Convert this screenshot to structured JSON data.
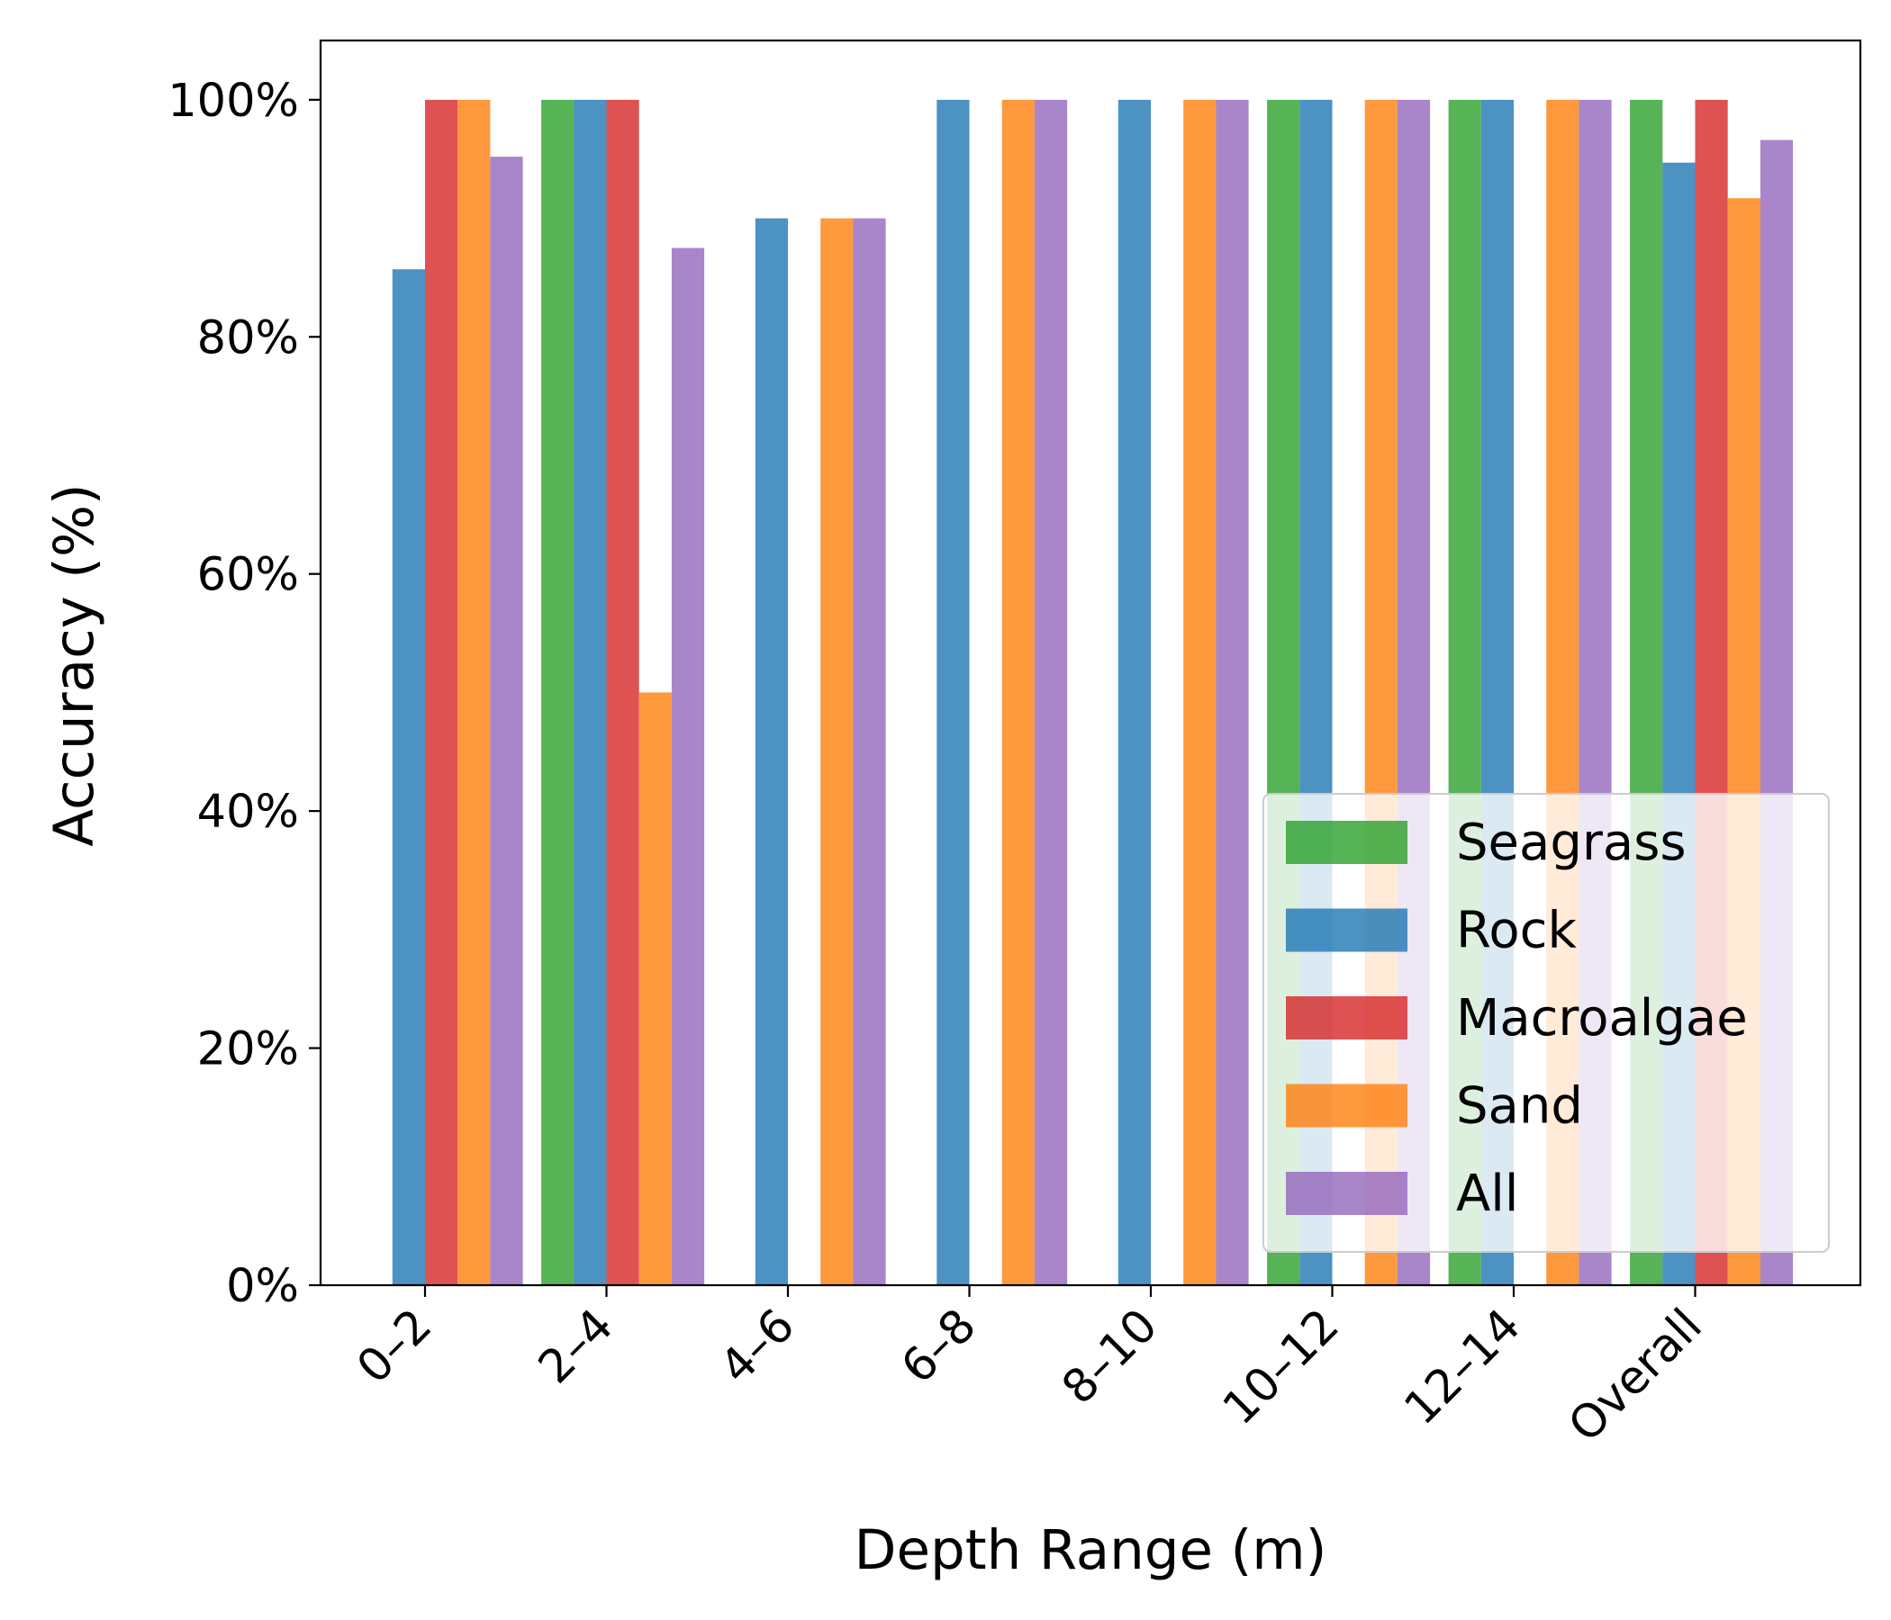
{
  "chart_data": {
    "type": "bar",
    "title": "",
    "xlabel": "Depth Range (m)",
    "ylabel": "Accuracy (%)",
    "ylim": [
      0,
      105
    ],
    "yticks": [
      0,
      20,
      40,
      60,
      80,
      100
    ],
    "ytick_labels": [
      "0%",
      "20%",
      "40%",
      "60%",
      "80%",
      "100%"
    ],
    "categories": [
      "0–2",
      "2–4",
      "4–6",
      "6–8",
      "8–10",
      "10–12",
      "12–14",
      "Overall"
    ],
    "legend_position": "lower-right",
    "grid": false,
    "series": [
      {
        "name": "Seagrass",
        "color": "#2ca02c",
        "values": [
          null,
          100,
          null,
          null,
          null,
          100,
          100,
          100
        ]
      },
      {
        "name": "Rock",
        "color": "#1f77b4",
        "values": [
          85.7,
          100,
          90,
          100,
          100,
          100,
          100,
          94.7
        ]
      },
      {
        "name": "Macroalgae",
        "color": "#d62728",
        "values": [
          100,
          100,
          null,
          null,
          null,
          null,
          null,
          100
        ]
      },
      {
        "name": "Sand",
        "color": "#ff7f0e",
        "values": [
          100,
          50,
          90,
          100,
          100,
          100,
          100,
          91.7
        ]
      },
      {
        "name": "All",
        "color": "#9467bd",
        "values": [
          95.2,
          87.5,
          90,
          100,
          100,
          100,
          100,
          96.6
        ]
      }
    ]
  }
}
